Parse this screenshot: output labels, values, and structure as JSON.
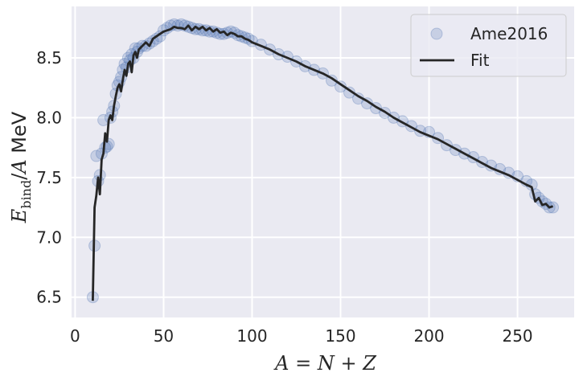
{
  "chart_data": {
    "type": "scatter",
    "title": "",
    "xlabel_parts": {
      "a": "A",
      "eq": " = ",
      "n": "N",
      "plus": " + ",
      "z": "Z"
    },
    "ylabel_parts": {
      "e": "E",
      "sub": "bind",
      "slash": "/",
      "a": "A",
      "unit": " MeV"
    },
    "xlim": [
      -2,
      282
    ],
    "ylim": [
      6.33,
      8.93
    ],
    "xticks": [
      0,
      50,
      100,
      150,
      200,
      250
    ],
    "yticks": [
      6.5,
      7.0,
      7.5,
      8.0,
      8.5
    ],
    "xtick_labels": [
      "0",
      "50",
      "100",
      "150",
      "200",
      "250"
    ],
    "ytick_labels": [
      "6.5",
      "7.0",
      "7.5",
      "8.0",
      "8.5"
    ],
    "grid": true,
    "legend_position": "top-right",
    "background_color": "#eaeaf2",
    "colors": {
      "scatter": "#4c72b0",
      "fit": "#262626"
    },
    "series": [
      {
        "name": "Ame2016",
        "kind": "scatter",
        "x": [
          10,
          11,
          12,
          13,
          14,
          15,
          16,
          17,
          18,
          19,
          20,
          21,
          22,
          23,
          24,
          25,
          26,
          27,
          28,
          29,
          30,
          31,
          32,
          33,
          34,
          35,
          36,
          38,
          40,
          42,
          44,
          46,
          48,
          50,
          52,
          54,
          56,
          58,
          60,
          62,
          64,
          66,
          68,
          70,
          72,
          74,
          76,
          78,
          80,
          82,
          84,
          86,
          88,
          90,
          92,
          94,
          96,
          98,
          100,
          105,
          110,
          115,
          120,
          125,
          130,
          135,
          140,
          145,
          150,
          155,
          160,
          165,
          170,
          175,
          180,
          185,
          190,
          195,
          200,
          205,
          210,
          215,
          220,
          225,
          230,
          235,
          240,
          245,
          250,
          255,
          258,
          260,
          262,
          264,
          266,
          268,
          270
        ],
        "y": [
          6.5,
          6.93,
          7.68,
          7.47,
          7.52,
          7.7,
          7.98,
          7.75,
          7.76,
          7.78,
          8.0,
          8.05,
          8.1,
          8.2,
          8.27,
          8.3,
          8.34,
          8.4,
          8.45,
          8.42,
          8.5,
          8.48,
          8.53,
          8.5,
          8.58,
          8.55,
          8.58,
          8.6,
          8.6,
          8.62,
          8.64,
          8.66,
          8.68,
          8.73,
          8.75,
          8.77,
          8.78,
          8.77,
          8.78,
          8.77,
          8.76,
          8.75,
          8.74,
          8.74,
          8.73,
          8.73,
          8.72,
          8.72,
          8.71,
          8.7,
          8.7,
          8.71,
          8.72,
          8.71,
          8.69,
          8.68,
          8.67,
          8.66,
          8.64,
          8.61,
          8.57,
          8.53,
          8.51,
          8.47,
          8.43,
          8.4,
          8.37,
          8.31,
          8.26,
          8.21,
          8.16,
          8.12,
          8.08,
          8.04,
          8.0,
          7.97,
          7.93,
          7.89,
          7.88,
          7.83,
          7.77,
          7.73,
          7.7,
          7.67,
          7.63,
          7.6,
          7.57,
          7.54,
          7.51,
          7.47,
          7.44,
          7.36,
          7.33,
          7.3,
          7.28,
          7.25,
          7.25
        ]
      },
      {
        "name": "Fit",
        "kind": "line",
        "x": [
          10,
          11,
          12,
          13,
          14,
          15,
          16,
          17,
          18,
          19,
          20,
          21,
          22,
          23,
          24,
          25,
          26,
          27,
          28,
          29,
          30,
          31,
          32,
          33,
          34,
          35,
          36,
          38,
          40,
          42,
          44,
          46,
          48,
          50,
          52,
          54,
          56,
          58,
          60,
          62,
          64,
          66,
          68,
          70,
          72,
          74,
          76,
          78,
          80,
          82,
          84,
          86,
          88,
          90,
          92,
          94,
          96,
          98,
          100,
          105,
          110,
          115,
          120,
          125,
          130,
          135,
          140,
          145,
          150,
          155,
          160,
          165,
          170,
          175,
          180,
          185,
          190,
          195,
          200,
          205,
          210,
          215,
          220,
          225,
          230,
          235,
          240,
          245,
          250,
          255,
          258,
          260,
          262,
          264,
          266,
          268,
          270
        ],
        "y": [
          6.47,
          7.25,
          7.35,
          7.5,
          7.36,
          7.65,
          7.7,
          7.87,
          7.8,
          7.98,
          8.02,
          7.98,
          8.1,
          8.18,
          8.25,
          8.28,
          8.22,
          8.32,
          8.4,
          8.35,
          8.45,
          8.47,
          8.38,
          8.52,
          8.55,
          8.5,
          8.57,
          8.6,
          8.63,
          8.6,
          8.66,
          8.68,
          8.7,
          8.72,
          8.73,
          8.74,
          8.76,
          8.75,
          8.75,
          8.74,
          8.77,
          8.73,
          8.76,
          8.74,
          8.76,
          8.73,
          8.75,
          8.72,
          8.74,
          8.71,
          8.72,
          8.69,
          8.71,
          8.7,
          8.68,
          8.68,
          8.66,
          8.65,
          8.63,
          8.6,
          8.57,
          8.53,
          8.5,
          8.47,
          8.43,
          8.4,
          8.37,
          8.33,
          8.28,
          8.23,
          8.18,
          8.14,
          8.09,
          8.05,
          8.0,
          7.96,
          7.92,
          7.88,
          7.85,
          7.82,
          7.78,
          7.74,
          7.7,
          7.66,
          7.62,
          7.58,
          7.55,
          7.52,
          7.48,
          7.44,
          7.42,
          7.3,
          7.33,
          7.27,
          7.28,
          7.25,
          7.26
        ]
      }
    ]
  }
}
